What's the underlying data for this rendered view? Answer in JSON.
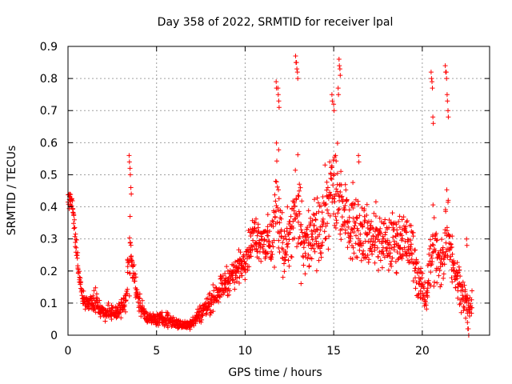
{
  "chart_data": {
    "type": "scatter",
    "title": "Day 358 of 2022, SRMTID for receiver lpal",
    "xlabel": "GPS time / hours",
    "ylabel": "SRMTID / TECUs",
    "xlim": [
      0,
      23.8
    ],
    "ylim": [
      0,
      0.9
    ],
    "xticks": [
      0,
      5,
      10,
      15,
      20
    ],
    "yticks": [
      0,
      0.1,
      0.2,
      0.3,
      0.4,
      0.5,
      0.6,
      0.7,
      0.8,
      0.9
    ],
    "xtick_labels": [
      "0",
      "5",
      "10",
      "15",
      "20"
    ],
    "ytick_labels": [
      "0",
      "0.1",
      "0.2",
      "0.3",
      "0.4",
      "0.5",
      "0.6",
      "0.7",
      "0.8",
      "0.9"
    ],
    "grid": true,
    "marker": "+",
    "color": "#ff0000",
    "series": [
      {
        "name": "SRMTID",
        "envelope": [
          [
            0.0,
            0.41,
            0.03
          ],
          [
            0.2,
            0.42,
            0.03
          ],
          [
            0.35,
            0.36,
            0.04
          ],
          [
            0.5,
            0.25,
            0.06
          ],
          [
            0.65,
            0.18,
            0.03
          ],
          [
            0.8,
            0.12,
            0.03
          ],
          [
            1.0,
            0.1,
            0.025
          ],
          [
            1.3,
            0.1,
            0.03
          ],
          [
            1.6,
            0.11,
            0.035
          ],
          [
            1.8,
            0.08,
            0.03
          ],
          [
            2.2,
            0.07,
            0.025
          ],
          [
            2.6,
            0.07,
            0.03
          ],
          [
            3.0,
            0.08,
            0.035
          ],
          [
            3.3,
            0.12,
            0.04
          ],
          [
            3.5,
            0.28,
            0.12
          ],
          [
            3.7,
            0.2,
            0.06
          ],
          [
            3.9,
            0.12,
            0.04
          ],
          [
            4.2,
            0.08,
            0.03
          ],
          [
            4.6,
            0.05,
            0.02
          ],
          [
            5.0,
            0.05,
            0.02
          ],
          [
            5.5,
            0.05,
            0.025
          ],
          [
            6.0,
            0.04,
            0.02
          ],
          [
            6.5,
            0.03,
            0.015
          ],
          [
            7.0,
            0.04,
            0.02
          ],
          [
            7.5,
            0.07,
            0.03
          ],
          [
            8.0,
            0.1,
            0.04
          ],
          [
            8.5,
            0.14,
            0.04
          ],
          [
            9.0,
            0.17,
            0.05
          ],
          [
            9.5,
            0.2,
            0.05
          ],
          [
            10.0,
            0.24,
            0.06
          ],
          [
            10.5,
            0.31,
            0.07
          ],
          [
            11.0,
            0.3,
            0.08
          ],
          [
            11.5,
            0.27,
            0.09
          ],
          [
            11.8,
            0.45,
            0.2
          ],
          [
            12.2,
            0.25,
            0.1
          ],
          [
            12.6,
            0.32,
            0.12
          ],
          [
            12.9,
            0.4,
            0.2
          ],
          [
            13.3,
            0.28,
            0.1
          ],
          [
            13.8,
            0.3,
            0.12
          ],
          [
            14.3,
            0.32,
            0.12
          ],
          [
            14.8,
            0.45,
            0.15
          ],
          [
            15.2,
            0.45,
            0.2
          ],
          [
            15.6,
            0.38,
            0.1
          ],
          [
            16.0,
            0.35,
            0.12
          ],
          [
            16.5,
            0.34,
            0.12
          ],
          [
            17.0,
            0.3,
            0.1
          ],
          [
            17.5,
            0.3,
            0.1
          ],
          [
            18.0,
            0.28,
            0.1
          ],
          [
            18.5,
            0.3,
            0.1
          ],
          [
            19.0,
            0.3,
            0.1
          ],
          [
            19.5,
            0.25,
            0.1
          ],
          [
            19.9,
            0.15,
            0.06
          ],
          [
            20.2,
            0.12,
            0.05
          ],
          [
            20.6,
            0.3,
            0.15
          ],
          [
            21.0,
            0.2,
            0.08
          ],
          [
            21.4,
            0.35,
            0.15
          ],
          [
            21.8,
            0.2,
            0.07
          ],
          [
            22.2,
            0.15,
            0.08
          ],
          [
            22.6,
            0.08,
            0.04
          ],
          [
            22.8,
            0.1,
            0.04
          ]
        ],
        "spikes": [
          [
            0.1,
            0.44
          ],
          [
            3.45,
            0.56
          ],
          [
            3.5,
            0.52
          ],
          [
            3.55,
            0.46
          ],
          [
            11.75,
            0.79
          ],
          [
            11.85,
            0.77
          ],
          [
            11.9,
            0.73
          ],
          [
            12.85,
            0.87
          ],
          [
            12.9,
            0.85
          ],
          [
            12.95,
            0.82
          ],
          [
            14.9,
            0.75
          ],
          [
            15.0,
            0.72
          ],
          [
            15.3,
            0.86
          ],
          [
            15.35,
            0.83
          ],
          [
            15.25,
            0.77
          ],
          [
            16.4,
            0.56
          ],
          [
            20.5,
            0.82
          ],
          [
            20.55,
            0.79
          ],
          [
            20.6,
            0.68
          ],
          [
            21.3,
            0.84
          ],
          [
            21.35,
            0.82
          ],
          [
            21.4,
            0.75
          ],
          [
            21.45,
            0.7
          ],
          [
            22.5,
            0.3
          ],
          [
            22.6,
            0.02
          ],
          [
            22.55,
            0.04
          ]
        ]
      }
    ]
  }
}
